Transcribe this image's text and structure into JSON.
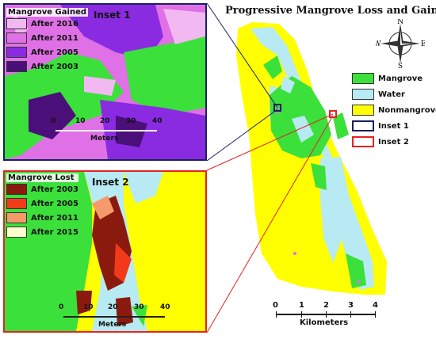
{
  "title": "Progressive Mangrove Loss and Gain",
  "colors": {
    "mangrove": "#3be03b",
    "water": "#b7eaf2",
    "nonmangrove": "#ffff00",
    "inset1_border": "#1a1f5e",
    "inset2_border": "#e52222",
    "gain_2016": "#f2b8f2",
    "gain_2011": "#e070e6",
    "gain_2005": "#8a2be2",
    "gain_2003": "#4b0f7a",
    "lost_2003": "#8b1a0e",
    "lost_2005": "#f23a1a",
    "lost_2011": "#f59a6a",
    "lost_2015": "#ffffcc"
  },
  "main_legend": [
    {
      "label": "Mangrove",
      "key": "mangrove"
    },
    {
      "label": "Water",
      "key": "water"
    },
    {
      "label": "Nonmangrove",
      "key": "nonmangrove"
    },
    {
      "label": "Inset 1",
      "key": "inset1_border",
      "outline": true
    },
    {
      "label": "Inset 2",
      "key": "inset2_border",
      "outline": true
    }
  ],
  "inset1": {
    "title": "Inset 1",
    "legend_title": "Mangrove Gained",
    "legend": [
      {
        "label": "After 2016",
        "key": "gain_2016"
      },
      {
        "label": "After 2011",
        "key": "gain_2011"
      },
      {
        "label": "After 2005",
        "key": "gain_2005"
      },
      {
        "label": "After 2003",
        "key": "gain_2003"
      }
    ],
    "scale_ticks": [
      "0",
      "10",
      "20",
      "30",
      "40"
    ],
    "scale_unit": "Meters"
  },
  "inset2": {
    "title": "Inset 2",
    "legend_title": "Mangrove Lost",
    "legend": [
      {
        "label": "After 2003",
        "key": "lost_2003"
      },
      {
        "label": "After 2005",
        "key": "lost_2005"
      },
      {
        "label": "After 2011",
        "key": "lost_2011"
      },
      {
        "label": "After 2015",
        "key": "lost_2015"
      }
    ],
    "scale_ticks": [
      "0",
      "10",
      "20",
      "30",
      "40"
    ],
    "scale_unit": "Meters"
  },
  "km_scale": {
    "ticks": [
      "0",
      "1",
      "2",
      "3",
      "4"
    ],
    "unit": "Kilometers"
  },
  "compass": {
    "n": "N",
    "s": "S",
    "e": "E",
    "w": "W"
  }
}
